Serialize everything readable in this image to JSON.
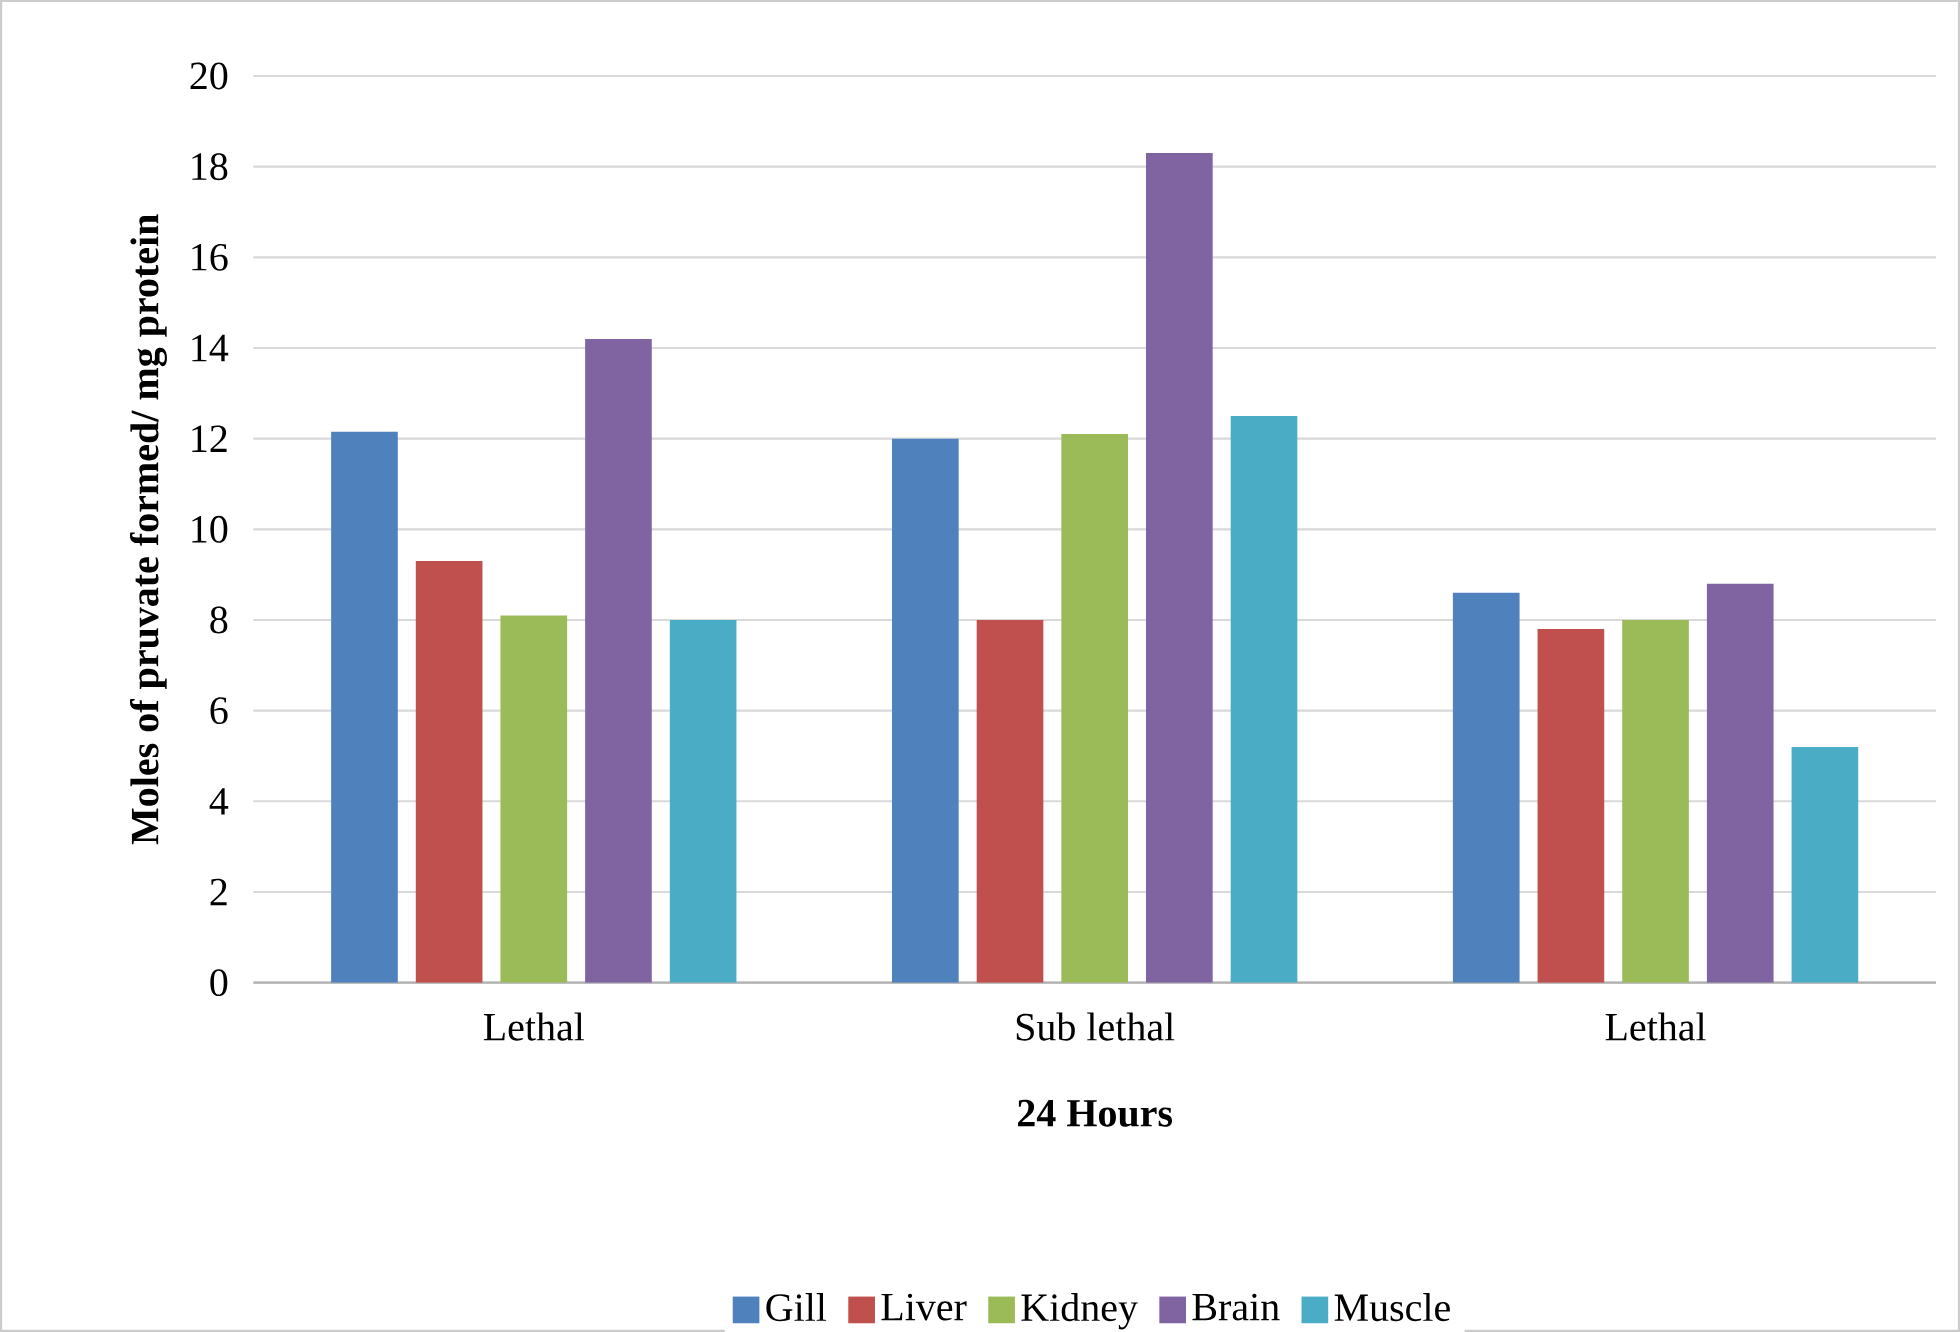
{
  "chart_data": {
    "type": "bar",
    "xlabel": "24 Hours",
    "ylabel": "Moles of pruvate formed/ mg protein",
    "categories": [
      "Lethal",
      "Sub lethal",
      "Lethal"
    ],
    "series": [
      {
        "name": "Gill",
        "color": "#4f81bd",
        "values": [
          12.15,
          12.0,
          8.6
        ]
      },
      {
        "name": "Liver",
        "color": "#c0504d",
        "values": [
          9.3,
          8.0,
          7.8
        ]
      },
      {
        "name": "Kidney",
        "color": "#9bbb59",
        "values": [
          8.1,
          12.1,
          8.0
        ]
      },
      {
        "name": "Brain",
        "color": "#8064a2",
        "values": [
          14.2,
          18.3,
          8.8
        ]
      },
      {
        "name": "Muscle",
        "color": "#4bacc6",
        "values": [
          8.0,
          12.5,
          5.2
        ]
      }
    ],
    "ylim": [
      0,
      20
    ],
    "yticks": [
      0,
      2,
      4,
      6,
      8,
      10,
      12,
      14,
      16,
      18,
      20
    ],
    "grid": "y",
    "legend": "bottom"
  }
}
